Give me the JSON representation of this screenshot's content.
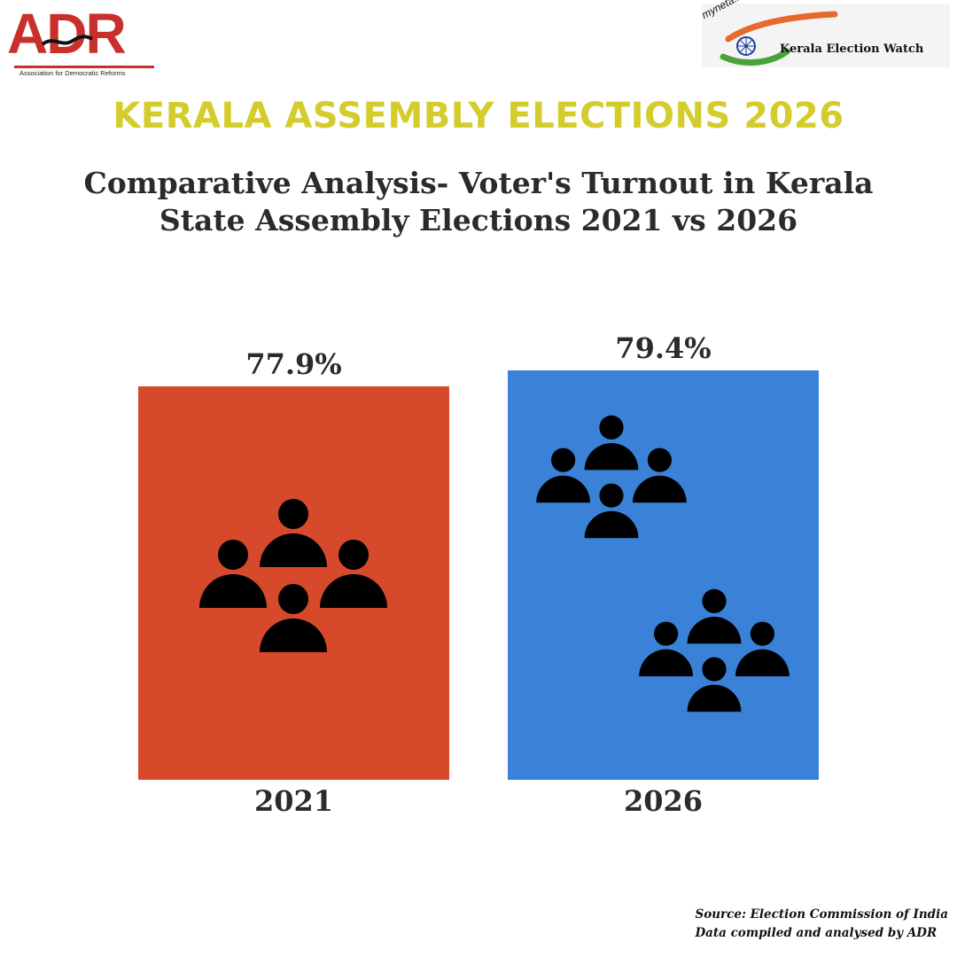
{
  "logos": {
    "adr": {
      "letters": "ADR",
      "subtitle": "Association for Democratic Reforms",
      "color": "#c9302c"
    },
    "myneta": {
      "brand": "myneta.info",
      "title": "Kerala Election Watch"
    }
  },
  "header": {
    "headline": "KERALA ASSEMBLY ELECTIONS 2026",
    "subtitle_line1": "Comparative Analysis- Voter's Turnout in Kerala",
    "subtitle_line2": "State Assembly Elections 2021 vs 2026"
  },
  "chart_data": {
    "type": "bar",
    "categories": [
      "2021",
      "2026"
    ],
    "values": [
      77.9,
      79.4
    ],
    "data_labels": [
      "77.9%",
      "79.4%"
    ],
    "colors": [
      "#d64a2b",
      "#3a82d8"
    ],
    "icons": [
      "group-icon",
      "group-icon"
    ],
    "ylim": [
      0,
      80
    ],
    "grid": false,
    "legend": "none"
  },
  "footer": {
    "source": "Source: Election Commission of India",
    "compiled": "Data compiled and analysed by ADR"
  }
}
